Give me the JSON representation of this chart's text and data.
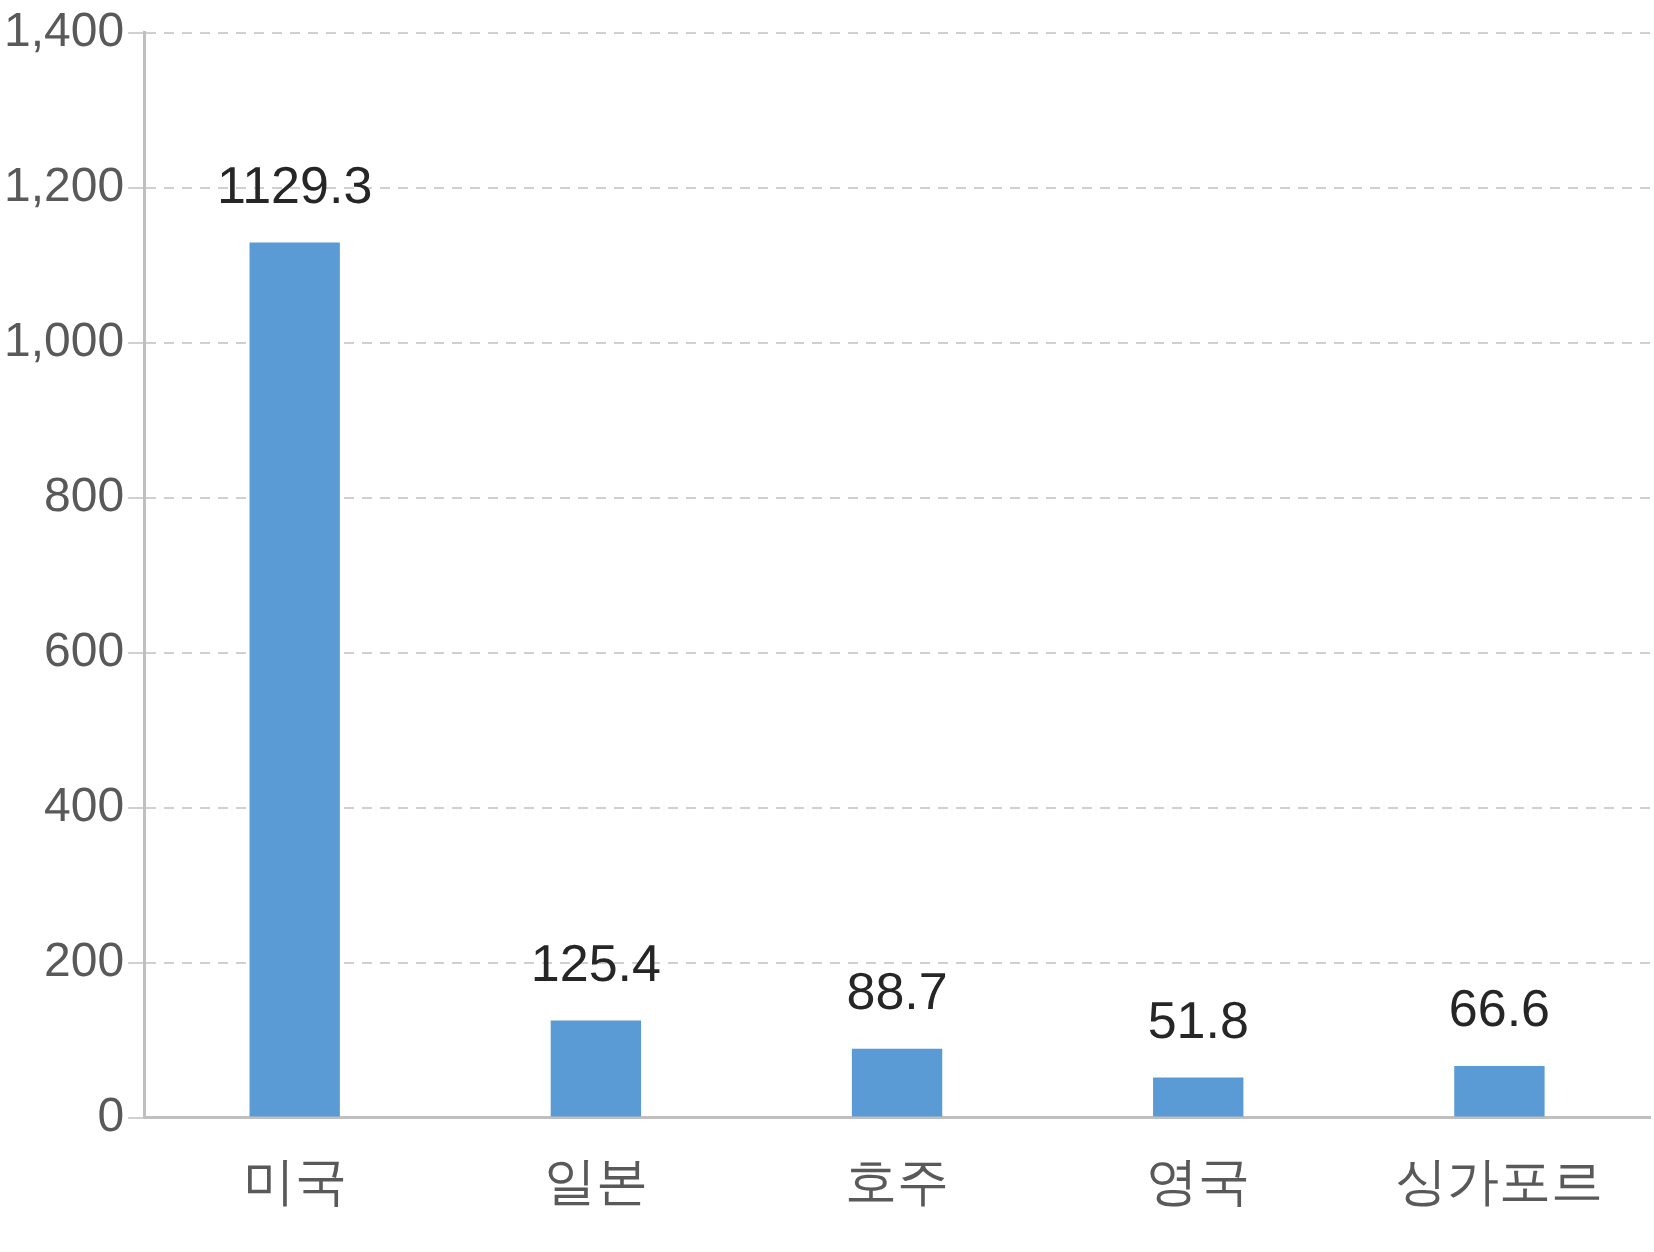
{
  "chart_data": {
    "type": "bar",
    "categories": [
      "미국",
      "일본",
      "호주",
      "영국",
      "싱가포르"
    ],
    "values": [
      1129.3,
      125.4,
      88.7,
      51.8,
      66.6
    ],
    "color": "#5b9bd5",
    "ylim": [
      0,
      1400
    ],
    "yticks": [
      0,
      200,
      400,
      600,
      800,
      {
        "value": 1000,
        "label": "1,000"
      },
      {
        "value": 1200,
        "label": "1,200"
      },
      {
        "value": 1400,
        "label": "1,400"
      }
    ],
    "grid": "y",
    "data_labels": true,
    "legend": false
  }
}
